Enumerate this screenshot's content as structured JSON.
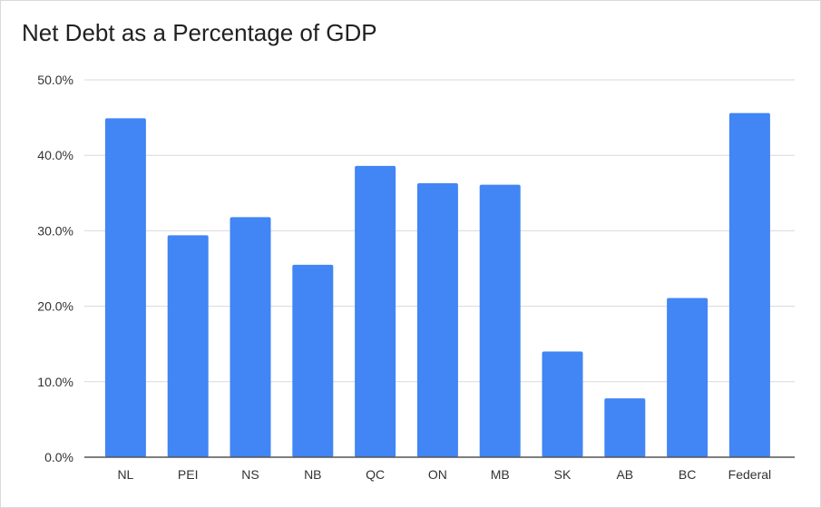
{
  "chart_data": {
    "type": "bar",
    "title": "Net Debt as a Percentage of GDP",
    "xlabel": "",
    "ylabel": "",
    "categories": [
      "NL",
      "PEI",
      "NS",
      "NB",
      "QC",
      "ON",
      "MB",
      "SK",
      "AB",
      "BC",
      "Federal"
    ],
    "values": [
      44.9,
      29.4,
      31.8,
      25.5,
      38.6,
      36.3,
      36.1,
      14.0,
      7.8,
      21.1,
      45.6
    ],
    "ylim": [
      0,
      50
    ],
    "yticks": [
      "0.0%",
      "10.0%",
      "20.0%",
      "30.0%",
      "40.0%",
      "50.0%"
    ],
    "grid": true,
    "legend": "none",
    "colors": {
      "bar": "#4285f4",
      "grid": "#d9d9d9",
      "axis": "#555555"
    }
  }
}
